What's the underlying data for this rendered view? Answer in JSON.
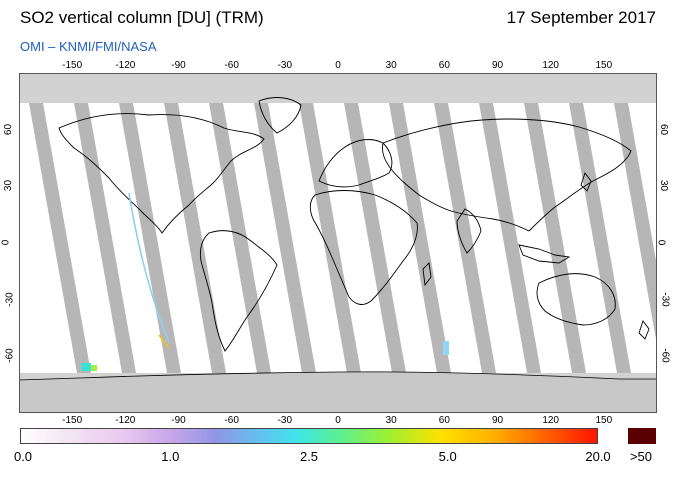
{
  "header": {
    "title": "SO2 vertical column [DU] (TRM)",
    "date": "17 September 2017",
    "credit": "OMI  –  KNMI/FMI/NASA"
  },
  "map": {
    "projection": "equirectangular",
    "lon_range": [
      -180,
      180
    ],
    "lat_range": [
      -90,
      90
    ],
    "x_ticks": [
      "-150",
      "-120",
      "-90",
      "-60",
      "-30",
      "0",
      "30",
      "60",
      "90",
      "120",
      "150"
    ],
    "y_ticks": [
      "60",
      "30",
      "0",
      "-30",
      "-60"
    ],
    "colors": {
      "no_data": "#d2d2d2",
      "swath_gap": "#a9a9a9",
      "land_outline": "#000000",
      "background": "#ffffff"
    }
  },
  "colorbar": {
    "labels": [
      "0.0",
      "1.0",
      "2.5",
      "5.0",
      "20.0",
      ">50"
    ],
    "overflow_color": "#5a0000"
  }
}
